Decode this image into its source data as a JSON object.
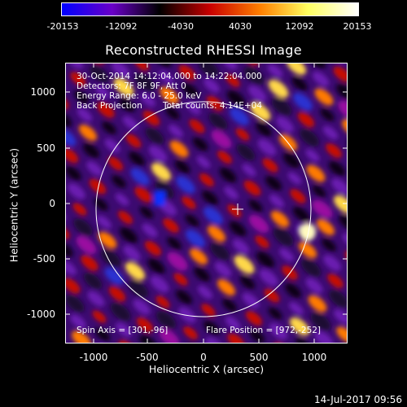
{
  "colorbar": {
    "ticks": [
      "-20153",
      "-12092",
      "-4030",
      "4030",
      "12092",
      "20153"
    ],
    "colors": [
      "#0000ff",
      "#6a00c8",
      "#000000",
      "#c80000",
      "#ff8000",
      "#ffff60",
      "#ffffff"
    ]
  },
  "title": "Reconstructed RHESSI Image",
  "annotations": {
    "time_range": "30-Oct-2014 14:12:04.000 to 14:22:04.000",
    "detectors": "Detectors: 7F 8F 9F, Att 0",
    "energy": "Energy Range: 6.0 - 25.0 keV",
    "method": "Back Projection",
    "counts": "Total counts: 4.14E+04",
    "spin_axis": "Spin Axis = [301,-96]",
    "flare_position": "Flare Position = [972,-252]"
  },
  "axes": {
    "xlabel": "Heliocentric X (arcsec)",
    "ylabel": "Heliocentric Y (arcsec)",
    "xticks": [
      "-1000",
      "-500",
      "0",
      "500",
      "1000"
    ],
    "yticks": [
      "1000",
      "500",
      "0",
      "-500",
      "-1000"
    ]
  },
  "timestamp": "14-Jul-2017 09:56"
}
